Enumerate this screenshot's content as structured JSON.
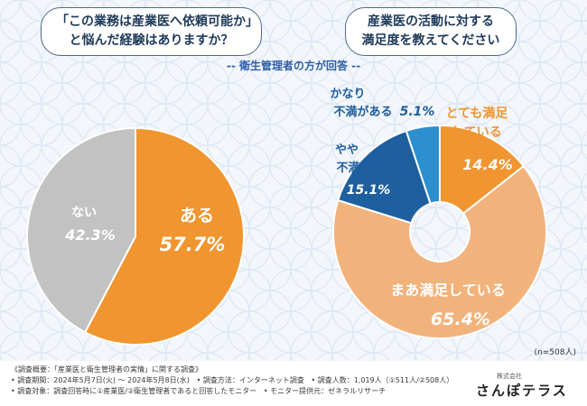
{
  "questions": {
    "q1_line1": "「この業務は産業医へ依頼可能か」",
    "q1_line2": "と悩んだ経験はありますか？",
    "q2_line1": "産業医の活動に対する",
    "q2_line2": "満足度を教えてください"
  },
  "subtitle": "-- 衛生管理者の方が回答 --",
  "chart_data": [
    {
      "type": "pie",
      "categories": [
        "ある",
        "ない"
      ],
      "values": [
        57.7,
        42.3
      ],
      "value_labels": [
        "57.7%",
        "42.3%"
      ],
      "colors": [
        "#f0952f",
        "#c2c2c2"
      ]
    },
    {
      "type": "pie",
      "categories": [
        "とても満足している",
        "まあ満足している",
        "やや不満がある",
        "かなり不満がある"
      ],
      "label_lines": [
        [
          "とても満足",
          "している"
        ],
        [
          "まあ満足している"
        ],
        [
          "やや",
          "不満がある"
        ],
        [
          "かなり",
          "不満がある"
        ]
      ],
      "values": [
        14.4,
        65.4,
        15.1,
        5.1
      ],
      "value_labels": [
        "14.4%",
        "65.4%",
        "15.1%",
        "5.1%"
      ],
      "colors": [
        "#f0952f",
        "#f2b27b",
        "#1e5fa0",
        "#2b8fd0"
      ]
    }
  ],
  "sample_note": "(n=508人)",
  "footer": {
    "line1": "《調査概要：「産業医と衛生管理者の実情」に関する調査》",
    "line2a": "• 調査期間：2024年5月7日(火) 〜 2024年5月8日(水)",
    "line2b": "• 調査方法：インターネット調査",
    "line2c": "• 調査人数：1,019人（①511人/②508人）",
    "line3a": "• 調査対象：調査回答時に①産業医/②衛生管理者であると回答したモニター",
    "line3b": "• モニター提供元：ゼネラルリサーチ"
  },
  "logo": {
    "small": "株式会社",
    "main": "さんぽテラス"
  }
}
